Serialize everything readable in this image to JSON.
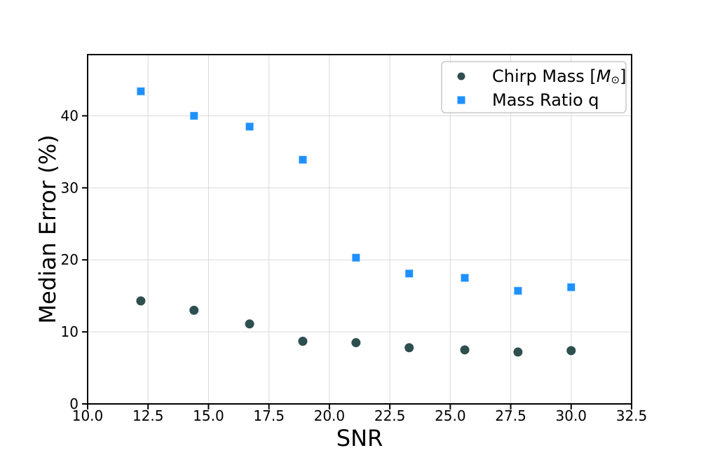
{
  "figure": {
    "background": "#ffffff",
    "grid_color": "#d9d9d9",
    "axis_color": "#000000",
    "legend_border_color": "#c8c8c8",
    "legend_background": "#ffffff"
  },
  "chart_data": {
    "type": "scatter",
    "title": "",
    "xlabel": "SNR",
    "ylabel": "Median Error (%)",
    "xlim": [
      10.0,
      32.5
    ],
    "ylim": [
      0,
      48.5
    ],
    "xticks": [
      10.0,
      12.5,
      15.0,
      17.5,
      20.0,
      22.5,
      25.0,
      27.5,
      30.0,
      32.5
    ],
    "xtick_labels": [
      "10.0",
      "12.5",
      "15.0",
      "17.5",
      "20.0",
      "22.5",
      "25.0",
      "27.5",
      "30.0",
      "32.5"
    ],
    "yticks": [
      0,
      10,
      20,
      30,
      40
    ],
    "ytick_labels": [
      "0",
      "10",
      "20",
      "30",
      "40"
    ],
    "grid": true,
    "x": [
      12.2,
      14.4,
      16.7,
      18.9,
      21.1,
      23.3,
      25.6,
      27.8,
      30.0
    ],
    "series": [
      {
        "name": "Chirp Mass [M⊙]",
        "marker": "circle",
        "color": "#2F4F4F",
        "values": [
          14.3,
          13.0,
          11.1,
          8.7,
          8.5,
          7.8,
          7.5,
          7.2,
          7.4
        ]
      },
      {
        "name": "Mass Ratio q",
        "marker": "square",
        "color": "#1E90FF",
        "values": [
          43.4,
          40.0,
          38.5,
          33.9,
          20.3,
          18.1,
          17.5,
          15.7,
          16.2
        ]
      }
    ],
    "legend": {
      "position": "upper right",
      "entries": [
        {
          "marker": "circle",
          "color": "#2F4F4F",
          "label_parts": [
            {
              "t": "Chirp Mass ["
            },
            {
              "t": "M",
              "style": "italic"
            },
            {
              "t": "⊙",
              "style": "sub"
            },
            {
              "t": "]"
            }
          ]
        },
        {
          "marker": "square",
          "color": "#1E90FF",
          "label_parts": [
            {
              "t": "Mass Ratio q"
            }
          ]
        }
      ]
    }
  }
}
